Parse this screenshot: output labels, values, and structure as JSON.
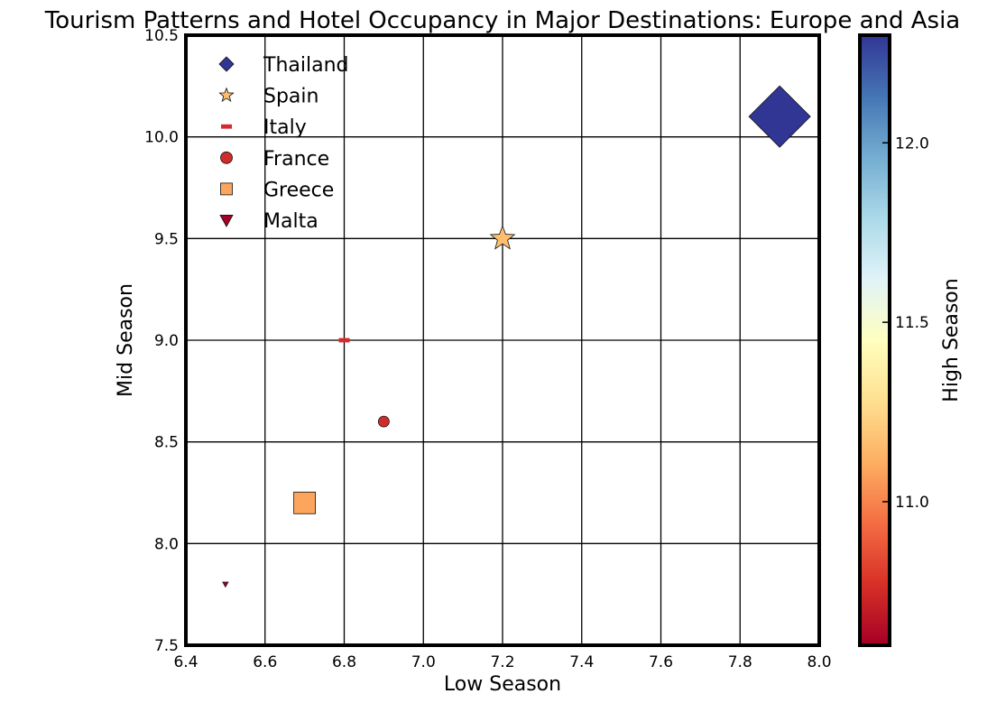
{
  "chart_data": {
    "type": "scatter",
    "title": "Tourism Patterns and Hotel Occupancy in Major Destinations: Europe and Asia",
    "xlabel": "Low Season",
    "ylabel": "Mid Season",
    "colorbar_label": "High Season",
    "xlim": [
      6.4,
      8.0
    ],
    "ylim": [
      7.5,
      10.5
    ],
    "xticks": [
      "6.4",
      "6.6",
      "6.8",
      "7.0",
      "7.2",
      "7.4",
      "7.6",
      "7.8",
      "8.0"
    ],
    "yticks": [
      "7.5",
      "8.0",
      "8.5",
      "9.0",
      "9.5",
      "10.0",
      "10.5"
    ],
    "grid": true,
    "legend_position": "upper-left",
    "colormap": "RdYlBu",
    "colorbar_range": [
      10.6,
      12.3
    ],
    "colorbar_ticks": [
      "11.0",
      "11.5",
      "12.0"
    ],
    "series": [
      {
        "name": "Thailand",
        "x": 7.9,
        "y": 10.1,
        "high_season": 12.3,
        "marker": "diamond",
        "color": "#313695"
      },
      {
        "name": "Spain",
        "x": 7.2,
        "y": 9.5,
        "high_season": 11.2,
        "marker": "star",
        "color": "#fdbf6f"
      },
      {
        "name": "Italy",
        "x": 6.8,
        "y": 9.0,
        "high_season": 10.7,
        "marker": "hline",
        "color": "#d52a2b"
      },
      {
        "name": "France",
        "x": 6.9,
        "y": 8.6,
        "high_season": 10.7,
        "marker": "circle",
        "color": "#d22b2b"
      },
      {
        "name": "Greece",
        "x": 6.7,
        "y": 8.2,
        "high_season": 11.05,
        "marker": "square",
        "color": "#fca55d"
      },
      {
        "name": "Malta",
        "x": 6.5,
        "y": 7.8,
        "high_season": 10.6,
        "marker": "triangle-down",
        "color": "#a50026"
      }
    ]
  }
}
